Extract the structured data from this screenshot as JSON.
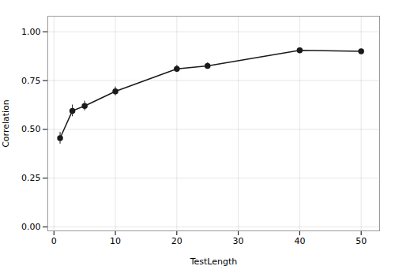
{
  "chart_data": {
    "type": "line",
    "x": [
      1,
      3,
      5,
      10,
      20,
      25,
      40,
      50
    ],
    "values": [
      0.455,
      0.595,
      0.62,
      0.695,
      0.81,
      0.825,
      0.905,
      0.9
    ],
    "yerr": [
      0.03,
      0.03,
      0.025,
      0.022,
      0.018,
      0.016,
      0.01,
      0.01
    ],
    "color": "#1a1a1a",
    "marker": "circle",
    "xlabel": "TestLength",
    "ylabel": "Correlation",
    "xlim": [
      -1,
      53
    ],
    "ylim": [
      -0.02,
      1.08
    ],
    "xticks": [
      0,
      10,
      20,
      30,
      40,
      50
    ],
    "yticks": [
      {
        "value": 0.0,
        "label": "0.00"
      },
      {
        "value": 0.25,
        "label": "0.25"
      },
      {
        "value": 0.5,
        "label": "0.50"
      },
      {
        "value": 0.75,
        "label": "0.75"
      },
      {
        "value": 1.0,
        "label": "1.00"
      }
    ],
    "grid": true
  }
}
